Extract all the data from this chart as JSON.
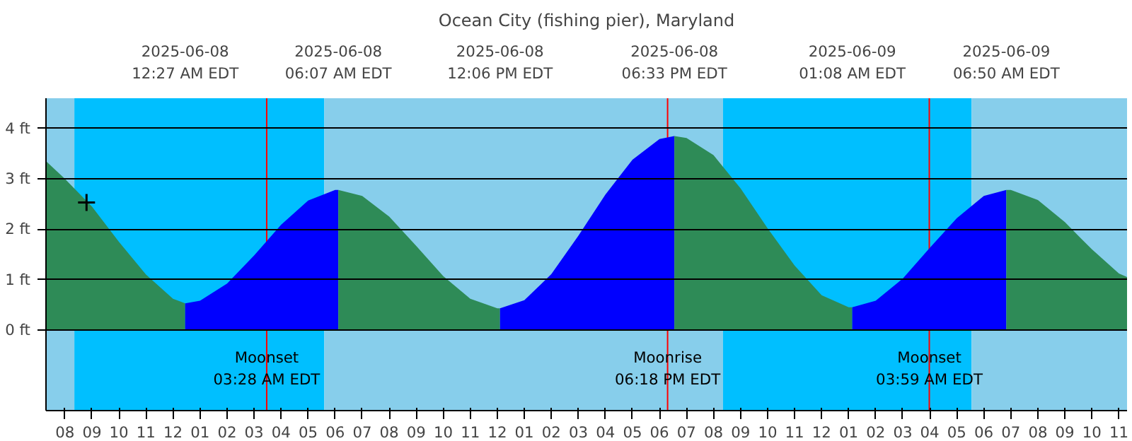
{
  "chart_data": {
    "type": "area",
    "title": "Ocean City (fishing pier), Maryland",
    "xlim": [
      "2025-06-07T19:18",
      "2025-06-09T11:18"
    ],
    "ylim": [
      -1.6,
      4.6
    ],
    "xticks": [
      {
        "value": "2025-06-07T20:00",
        "label": "08"
      },
      {
        "value": "2025-06-07T21:00",
        "label": "09"
      },
      {
        "value": "2025-06-07T22:00",
        "label": "10"
      },
      {
        "value": "2025-06-07T23:00",
        "label": "11"
      },
      {
        "value": "2025-06-08T00:00",
        "label": "12"
      },
      {
        "value": "2025-06-08T01:00",
        "label": "01"
      },
      {
        "value": "2025-06-08T02:00",
        "label": "02"
      },
      {
        "value": "2025-06-08T03:00",
        "label": "03"
      },
      {
        "value": "2025-06-08T04:00",
        "label": "04"
      },
      {
        "value": "2025-06-08T05:00",
        "label": "05"
      },
      {
        "value": "2025-06-08T06:00",
        "label": "06"
      },
      {
        "value": "2025-06-08T07:00",
        "label": "07"
      },
      {
        "value": "2025-06-08T08:00",
        "label": "08"
      },
      {
        "value": "2025-06-08T09:00",
        "label": "09"
      },
      {
        "value": "2025-06-08T10:00",
        "label": "10"
      },
      {
        "value": "2025-06-08T11:00",
        "label": "11"
      },
      {
        "value": "2025-06-08T12:00",
        "label": "12"
      },
      {
        "value": "2025-06-08T13:00",
        "label": "01"
      },
      {
        "value": "2025-06-08T14:00",
        "label": "02"
      },
      {
        "value": "2025-06-08T15:00",
        "label": "03"
      },
      {
        "value": "2025-06-08T16:00",
        "label": "04"
      },
      {
        "value": "2025-06-08T17:00",
        "label": "05"
      },
      {
        "value": "2025-06-08T18:00",
        "label": "06"
      },
      {
        "value": "2025-06-08T19:00",
        "label": "07"
      },
      {
        "value": "2025-06-08T20:00",
        "label": "08"
      },
      {
        "value": "2025-06-08T21:00",
        "label": "09"
      },
      {
        "value": "2025-06-08T22:00",
        "label": "10"
      },
      {
        "value": "2025-06-08T23:00",
        "label": "11"
      },
      {
        "value": "2025-06-09T00:00",
        "label": "12"
      },
      {
        "value": "2025-06-09T01:00",
        "label": "01"
      },
      {
        "value": "2025-06-09T02:00",
        "label": "02"
      },
      {
        "value": "2025-06-09T03:00",
        "label": "03"
      },
      {
        "value": "2025-06-09T04:00",
        "label": "04"
      },
      {
        "value": "2025-06-09T05:00",
        "label": "05"
      },
      {
        "value": "2025-06-09T06:00",
        "label": "06"
      },
      {
        "value": "2025-06-09T07:00",
        "label": "07"
      },
      {
        "value": "2025-06-09T08:00",
        "label": "08"
      },
      {
        "value": "2025-06-09T09:00",
        "label": "09"
      },
      {
        "value": "2025-06-09T10:00",
        "label": "10"
      },
      {
        "value": "2025-06-09T11:00",
        "label": "11"
      }
    ],
    "x2lim": [
      "2025-06-07T19:18",
      "2025-06-09T11:18"
    ],
    "x2ticks": [
      {
        "value": "2025-06-08T00:27",
        "label": "2025-06-08\n12:27 AM EDT"
      },
      {
        "value": "2025-06-08T06:07",
        "label": "2025-06-08\n06:07 AM EDT"
      },
      {
        "value": "2025-06-08T12:06",
        "label": "2025-06-08\n12:06 PM EDT"
      },
      {
        "value": "2025-06-08T18:33",
        "label": "2025-06-08\n06:33 PM EDT"
      },
      {
        "value": "2025-06-09T01:08",
        "label": "2025-06-09\n01:08 AM EDT"
      },
      {
        "value": "2025-06-09T06:50",
        "label": "2025-06-09\n06:50 AM EDT"
      }
    ],
    "yticks": [
      {
        "value": 0,
        "label": "0 ft"
      },
      {
        "value": 1,
        "label": "1 ft"
      },
      {
        "value": 2,
        "label": "2 ft"
      },
      {
        "value": 3,
        "label": "3 ft"
      },
      {
        "value": 4,
        "label": "4 ft"
      }
    ],
    "grid": "y",
    "bands": [
      {
        "axis": "x",
        "from": "2025-06-07T19:18",
        "to": "2025-06-07T20:21",
        "color": "#87ceeb"
      },
      {
        "axis": "x",
        "from": "2025-06-07T20:21",
        "to": "2025-06-08T05:36",
        "color": "#00bfff"
      },
      {
        "axis": "x",
        "from": "2025-06-08T05:36",
        "to": "2025-06-08T20:21",
        "color": "#87ceeb"
      },
      {
        "axis": "x",
        "from": "2025-06-08T20:21",
        "to": "2025-06-09T05:33",
        "color": "#00bfff"
      },
      {
        "axis": "x",
        "from": "2025-06-09T05:33",
        "to": "2025-06-09T11:18",
        "color": "#87ceeb"
      }
    ],
    "ref_lines": [
      {
        "axis": "x",
        "value": "2025-06-08T03:28",
        "label": "Moonset\n03:28 AM EDT",
        "color": "#ff0000"
      },
      {
        "axis": "x",
        "value": "2025-06-08T18:18",
        "label": "Moonrise\n06:18 PM EDT",
        "color": "#ff0000"
      },
      {
        "axis": "x",
        "value": "2025-06-09T03:59",
        "label": "Moonset\n03:59 AM EDT",
        "color": "#ff0000"
      }
    ],
    "series": [
      {
        "color": "#2e8b57",
        "x": [
          "2025-06-07T19:18",
          "2025-06-07T20:00",
          "2025-06-07T21:00",
          "2025-06-07T22:00",
          "2025-06-07T23:00",
          "2025-06-08T00:00",
          "2025-06-08T00:27"
        ],
        "values": [
          3.35,
          3.0,
          2.45,
          1.75,
          1.1,
          0.62,
          0.53
        ]
      },
      {
        "color": "#0000ff",
        "x": [
          "2025-06-08T00:27",
          "2025-06-08T01:00",
          "2025-06-08T02:00",
          "2025-06-08T03:00",
          "2025-06-08T04:00",
          "2025-06-08T05:00",
          "2025-06-08T06:00",
          "2025-06-08T06:07"
        ],
        "values": [
          0.53,
          0.58,
          0.92,
          1.48,
          2.09,
          2.57,
          2.78,
          2.78
        ]
      },
      {
        "color": "#2e8b57",
        "x": [
          "2025-06-08T06:07",
          "2025-06-08T07:00",
          "2025-06-08T08:00",
          "2025-06-08T09:00",
          "2025-06-08T10:00",
          "2025-06-08T11:00",
          "2025-06-08T12:00",
          "2025-06-08T12:06"
        ],
        "values": [
          2.78,
          2.66,
          2.25,
          1.67,
          1.07,
          0.62,
          0.43,
          0.43
        ]
      },
      {
        "color": "#0000ff",
        "x": [
          "2025-06-08T12:06",
          "2025-06-08T13:00",
          "2025-06-08T14:00",
          "2025-06-08T15:00",
          "2025-06-08T16:00",
          "2025-06-08T17:00",
          "2025-06-08T18:00",
          "2025-06-08T18:33"
        ],
        "values": [
          0.43,
          0.59,
          1.11,
          1.87,
          2.69,
          3.38,
          3.79,
          3.85
        ]
      },
      {
        "color": "#2e8b57",
        "x": [
          "2025-06-08T18:33",
          "2025-06-08T19:00",
          "2025-06-08T20:00",
          "2025-06-08T21:00",
          "2025-06-08T22:00",
          "2025-06-08T23:00",
          "2025-06-09T00:00",
          "2025-06-09T01:00",
          "2025-06-09T01:08"
        ],
        "values": [
          3.85,
          3.81,
          3.47,
          2.81,
          2.02,
          1.28,
          0.69,
          0.45,
          0.45
        ]
      },
      {
        "color": "#0000ff",
        "x": [
          "2025-06-09T01:08",
          "2025-06-09T02:00",
          "2025-06-09T03:00",
          "2025-06-09T04:00",
          "2025-06-09T05:00",
          "2025-06-09T06:00",
          "2025-06-09T06:50"
        ],
        "values": [
          0.45,
          0.58,
          1.02,
          1.63,
          2.22,
          2.66,
          2.78
        ]
      },
      {
        "color": "#2e8b57",
        "x": [
          "2025-06-09T06:50",
          "2025-06-09T07:00",
          "2025-06-09T08:00",
          "2025-06-09T09:00",
          "2025-06-09T10:00",
          "2025-06-09T11:00",
          "2025-06-09T11:18"
        ],
        "values": [
          2.78,
          2.78,
          2.58,
          2.14,
          1.6,
          1.12,
          1.05
        ]
      },
      {
        "type": "scatter",
        "marker": "cross",
        "color": "#000000",
        "x": [
          "2025-06-07T20:48"
        ],
        "values": [
          2.53
        ]
      }
    ]
  }
}
